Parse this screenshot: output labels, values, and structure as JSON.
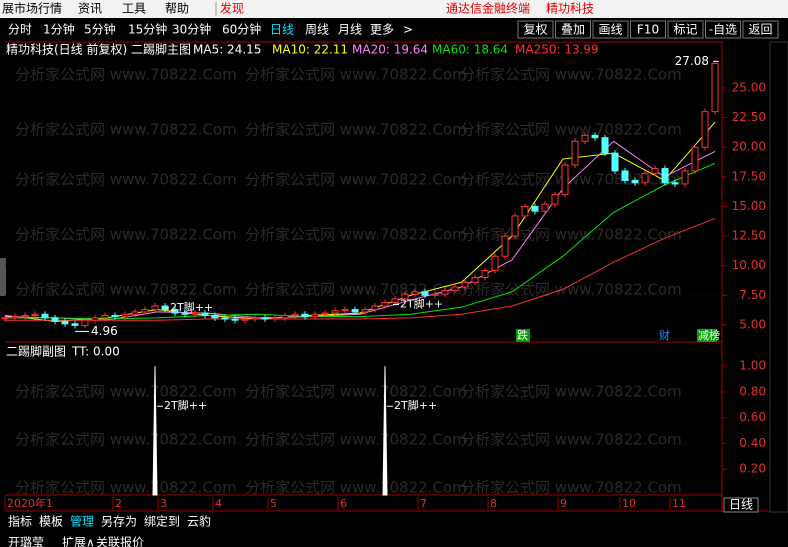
{
  "menu": {
    "items": [
      "展市场行情",
      "资讯",
      "工具",
      "帮助",
      "发现"
    ],
    "app_title": "通达信金融终端",
    "stock": "精功科技"
  },
  "toolbar": {
    "periods": [
      "分时",
      "1分钟",
      "5分钟",
      "15分钟",
      "30分钟",
      "60分钟",
      "日线",
      "周线",
      "月线",
      "更多",
      ">"
    ],
    "buttons": [
      "复权",
      "叠加",
      "画线",
      "F10",
      "标记",
      "-自选",
      "返回"
    ]
  },
  "watermark": "分析家公式网 www.70822.Com",
  "main_chart": {
    "title": "精功科技(日线 前复权) 二踢脚主图",
    "up_color": "#ff3232",
    "down_color": "#54ffff",
    "close": [
      5.6,
      5.7,
      5.8,
      5.9,
      5.6,
      5.3,
      5.1,
      4.96,
      5.4,
      5.6,
      5.8,
      5.7,
      5.9,
      6.1,
      6.3,
      6.6,
      6.3,
      6.0,
      5.9,
      6.0,
      5.8,
      5.6,
      5.5,
      5.4,
      5.5,
      5.6,
      5.5,
      5.6,
      5.8,
      5.9,
      5.7,
      5.9,
      6.0,
      6.2,
      6.3,
      6.1,
      6.3,
      6.6,
      6.9,
      7.2,
      7.6,
      7.8,
      7.5,
      7.6,
      7.9,
      8.2,
      8.6,
      9.0,
      9.6,
      10.8,
      12.5,
      14.2,
      15.0,
      14.6,
      15.2,
      16.0,
      18.5,
      20.5,
      21.0,
      20.8,
      19.5,
      18.0,
      17.2,
      17.0,
      17.8,
      18.2,
      17.0,
      16.9,
      18.0,
      20.0,
      23.0,
      27.08
    ],
    "ma_labels": [
      {
        "text": "MA5: 24.15",
        "color": "#ffffff"
      },
      {
        "text": "MA10: 22.11",
        "color": "#ffff00",
        "values": [
          5.8,
          5.3,
          5.6,
          6.3,
          5.8,
          5.5,
          5.8,
          6.0,
          7.5,
          8.6,
          12.5,
          19.0,
          19.5,
          17.2,
          22.11
        ]
      },
      {
        "text": "MA20: 19.64",
        "color": "#ff80ff",
        "values": [
          5.7,
          5.6,
          5.4,
          6.1,
          6.0,
          5.6,
          5.7,
          5.9,
          7.1,
          8.2,
          10.5,
          16.5,
          20.5,
          17.5,
          19.64
        ]
      },
      {
        "text": "MA60: 18.64",
        "color": "#00e600",
        "values": [
          5.6,
          5.6,
          5.5,
          5.6,
          5.8,
          5.9,
          5.7,
          5.7,
          5.9,
          6.5,
          7.8,
          10.8,
          14.5,
          16.8,
          18.64
        ]
      },
      {
        "text": "MA250: 13.99",
        "color": "#ff3030",
        "values": [
          5.4,
          5.4,
          5.4,
          5.4,
          5.5,
          5.5,
          5.5,
          5.5,
          5.6,
          5.9,
          6.6,
          8.0,
          10.3,
          12.3,
          13.99
        ]
      }
    ],
    "ylim": [
      3.56,
      27.53
    ],
    "yticks": [
      {
        "value": 25,
        "label": "25.00"
      },
      {
        "value": 22.5,
        "label": "22.50"
      },
      {
        "value": 20,
        "label": "20.00"
      },
      {
        "value": 17.5,
        "label": "17.50"
      },
      {
        "value": 15,
        "label": "15.00"
      },
      {
        "value": 12.5,
        "label": "12.50"
      },
      {
        "value": 10,
        "label": "10.00"
      },
      {
        "value": 7.5,
        "label": "7.50"
      },
      {
        "value": 5,
        "label": "5.00"
      }
    ],
    "signal_label": "2T脚++",
    "markers": [
      "跌",
      "财",
      "减榜"
    ]
  },
  "sub_chart": {
    "title": "二踢脚副图",
    "readout": "TT: 0.00",
    "signals": [
      {
        "index": 15,
        "value": 1
      },
      {
        "index": 38,
        "value": 1
      }
    ],
    "ylim": [
      0,
      1.165
    ],
    "yticks": [
      {
        "value": 1,
        "label": "1.00"
      },
      {
        "value": 0.8,
        "label": "0.80"
      },
      {
        "value": 0.6,
        "label": "0.60"
      },
      {
        "value": 0.4,
        "label": "0.40"
      },
      {
        "value": 0.2,
        "label": "0.20"
      }
    ]
  },
  "date_axis": [
    "2020年1",
    "2",
    "3",
    "4",
    "5",
    "6",
    "7",
    "8",
    "9",
    "10",
    "11"
  ],
  "period_box": "日线",
  "bottom_tabs": [
    "指标",
    "模板",
    "管理",
    "另存为",
    "绑定到",
    "云豹"
  ],
  "status_row": [
    "开璐莹",
    "扩展∧",
    "关联报价"
  ]
}
